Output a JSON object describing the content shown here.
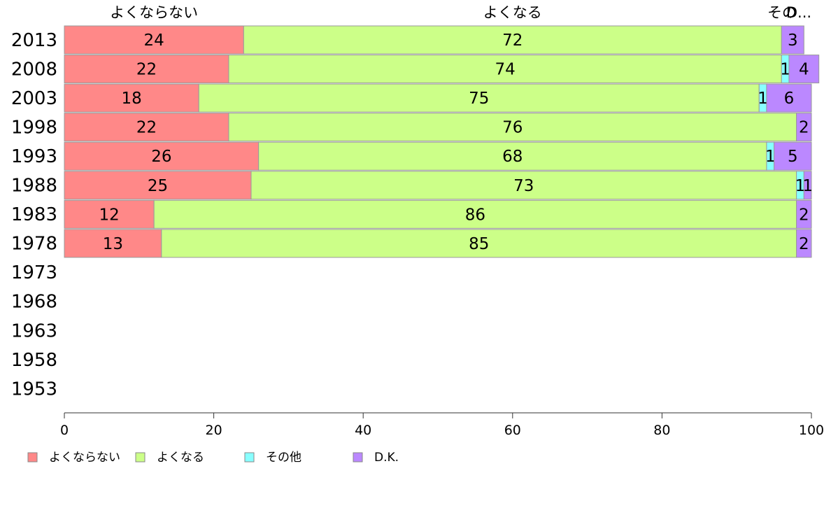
{
  "chart_data": {
    "type": "bar",
    "orientation": "horizontal",
    "stacked": true,
    "categories": [
      "2013",
      "2008",
      "2003",
      "1998",
      "1993",
      "1988",
      "1983",
      "1978",
      "1973",
      "1968",
      "1963",
      "1958",
      "1953"
    ],
    "series": [
      {
        "name": "よくならない",
        "color": "#ff8888",
        "values": [
          24,
          22,
          18,
          22,
          26,
          25,
          12,
          13,
          null,
          null,
          null,
          null,
          null
        ]
      },
      {
        "name": "よくなる",
        "color": "#ccff88",
        "values": [
          72,
          74,
          75,
          76,
          68,
          73,
          86,
          85,
          null,
          null,
          null,
          null,
          null
        ]
      },
      {
        "name": "その他",
        "color": "#88ffff",
        "values": [
          0,
          1,
          1,
          0,
          1,
          1,
          0,
          0,
          null,
          null,
          null,
          null,
          null
        ]
      },
      {
        "name": "D.K.",
        "color": "#bb88ff",
        "values": [
          3,
          4,
          6,
          2,
          5,
          1,
          2,
          2,
          null,
          null,
          null,
          null,
          null
        ]
      }
    ],
    "column_headers": [
      "よくならない",
      "よくなる",
      "その他",
      "D.K."
    ],
    "column_header_visible_text": [
      "よくならない",
      "よくなる",
      "その",
      "D..."
    ],
    "xlim": [
      0,
      100
    ],
    "xticks": [
      0,
      20,
      40,
      60,
      80,
      100
    ],
    "grid": false,
    "legend_position": "bottom-left"
  }
}
